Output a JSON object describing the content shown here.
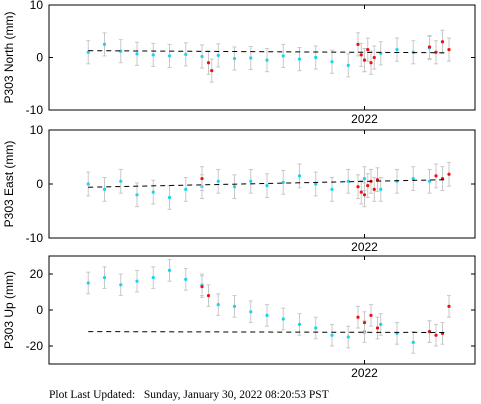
{
  "footer": {
    "label": "Plot Last Updated:",
    "timestamp": "Sunday, January 30, 2022 08:20:53 PST"
  },
  "colors": {
    "cyan_points": "#19d4ee",
    "red_points": "#ee1111",
    "error_bars": "#c8c8c8",
    "trend_line": "#000000",
    "axes": "#000000",
    "background": "#ffffff"
  },
  "chart_data": [
    {
      "type": "scatter",
      "title": "",
      "xlabel": "",
      "ylabel": "P303 North (mm)",
      "ylim": [
        -10,
        10
      ],
      "yticks": [
        -10,
        0,
        10
      ],
      "x_range_years": [
        2021.1,
        2022.3
      ],
      "xticks": [
        2022.0
      ],
      "xtick_labels": [
        "2022"
      ],
      "show_xtick_labels": true,
      "grid": false,
      "legend": "none",
      "series": [
        {
          "points": [
            {
              "x": 2021.15,
              "y": 1.0
            },
            {
              "x": 2021.2,
              "y": 2.5
            },
            {
              "x": 2021.25,
              "y": 1.2
            },
            {
              "x": 2021.3,
              "y": 0.7
            },
            {
              "x": 2021.35,
              "y": 0.5
            },
            {
              "x": 2021.4,
              "y": 0.3
            },
            {
              "x": 2021.45,
              "y": 0.6
            },
            {
              "x": 2021.5,
              "y": 0.2
            },
            {
              "x": 2021.55,
              "y": 0.4
            },
            {
              "x": 2021.6,
              "y": -0.2
            },
            {
              "x": 2021.65,
              "y": -0.1
            },
            {
              "x": 2021.7,
              "y": -0.5
            },
            {
              "x": 2021.75,
              "y": 0.3
            },
            {
              "x": 2021.8,
              "y": -0.3
            },
            {
              "x": 2021.85,
              "y": 0.0
            },
            {
              "x": 2021.9,
              "y": -0.8
            },
            {
              "x": 2021.95,
              "y": -1.5
            },
            {
              "x": 2022.0,
              "y": -0.5
            },
            {
              "x": 2022.05,
              "y": 0.8
            },
            {
              "x": 2022.1,
              "y": 1.5
            },
            {
              "x": 2022.15,
              "y": 1.0
            },
            {
              "x": 2022.2,
              "y": 1.8
            }
          ]
        },
        {
          "points": [
            {
              "x": 2021.52,
              "y": -1.0
            },
            {
              "x": 2021.53,
              "y": -2.5
            },
            {
              "x": 2021.98,
              "y": 2.5
            },
            {
              "x": 2021.99,
              "y": 0.5
            },
            {
              "x": 2022.0,
              "y": -0.5
            },
            {
              "x": 2022.01,
              "y": 1.5
            },
            {
              "x": 2022.02,
              "y": -1.0
            },
            {
              "x": 2022.03,
              "y": 0.0
            },
            {
              "x": 2022.2,
              "y": 2.0
            },
            {
              "x": 2022.22,
              "y": 1.0
            },
            {
              "x": 2022.24,
              "y": 3.0
            },
            {
              "x": 2022.26,
              "y": 1.5
            }
          ]
        }
      ],
      "trend_line": {
        "x": [
          2021.15,
          2022.25
        ],
        "y": [
          1.3,
          0.9
        ]
      }
    },
    {
      "type": "scatter",
      "title": "",
      "xlabel": "",
      "ylabel": "P303 East (mm)",
      "ylim": [
        -10,
        10
      ],
      "yticks": [
        -10,
        0,
        10
      ],
      "x_range_years": [
        2021.1,
        2022.3
      ],
      "xticks": [
        2022.0
      ],
      "xtick_labels": [
        "2022"
      ],
      "show_xtick_labels": true,
      "grid": false,
      "legend": "none",
      "series": [
        {
          "points": [
            {
              "x": 2021.15,
              "y": 0.0
            },
            {
              "x": 2021.2,
              "y": -1.0
            },
            {
              "x": 2021.25,
              "y": 0.5
            },
            {
              "x": 2021.3,
              "y": -2.0
            },
            {
              "x": 2021.35,
              "y": -1.5
            },
            {
              "x": 2021.4,
              "y": -2.5
            },
            {
              "x": 2021.45,
              "y": -1.0
            },
            {
              "x": 2021.5,
              "y": -0.5
            },
            {
              "x": 2021.55,
              "y": 0.5
            },
            {
              "x": 2021.6,
              "y": -0.5
            },
            {
              "x": 2021.65,
              "y": 0.5
            },
            {
              "x": 2021.7,
              "y": -0.3
            },
            {
              "x": 2021.75,
              "y": 0.3
            },
            {
              "x": 2021.8,
              "y": 1.5
            },
            {
              "x": 2021.85,
              "y": 0.0
            },
            {
              "x": 2021.9,
              "y": -1.0
            },
            {
              "x": 2021.95,
              "y": 0.5
            },
            {
              "x": 2022.0,
              "y": 1.0
            },
            {
              "x": 2022.05,
              "y": -1.0
            },
            {
              "x": 2022.1,
              "y": 0.5
            },
            {
              "x": 2022.15,
              "y": 1.0
            },
            {
              "x": 2022.2,
              "y": 0.5
            }
          ]
        },
        {
          "points": [
            {
              "x": 2021.5,
              "y": 1.0
            },
            {
              "x": 2021.98,
              "y": -0.5
            },
            {
              "x": 2021.99,
              "y": -1.5
            },
            {
              "x": 2022.0,
              "y": -2.0
            },
            {
              "x": 2022.01,
              "y": -0.3
            },
            {
              "x": 2022.02,
              "y": 0.5
            },
            {
              "x": 2022.03,
              "y": -1.0
            },
            {
              "x": 2022.04,
              "y": 0.8
            },
            {
              "x": 2022.22,
              "y": 1.5
            },
            {
              "x": 2022.24,
              "y": 1.0
            },
            {
              "x": 2022.26,
              "y": 1.8
            }
          ]
        }
      ],
      "trend_line": {
        "x": [
          2021.15,
          2022.25
        ],
        "y": [
          -0.6,
          0.8
        ]
      }
    },
    {
      "type": "scatter",
      "title": "",
      "xlabel": "",
      "ylabel": "P303 Up (mm)",
      "ylim": [
        -30,
        30
      ],
      "yticks": [
        -20,
        0,
        20
      ],
      "x_range_years": [
        2021.1,
        2022.3
      ],
      "xticks": [
        2022.0
      ],
      "xtick_labels": [
        "2022"
      ],
      "show_xtick_labels": true,
      "grid": false,
      "legend": "none",
      "series": [
        {
          "points": [
            {
              "x": 2021.15,
              "y": 15.0
            },
            {
              "x": 2021.2,
              "y": 18.0
            },
            {
              "x": 2021.25,
              "y": 14.0
            },
            {
              "x": 2021.3,
              "y": 16.0
            },
            {
              "x": 2021.35,
              "y": 18.0
            },
            {
              "x": 2021.4,
              "y": 22.0
            },
            {
              "x": 2021.45,
              "y": 17.0
            },
            {
              "x": 2021.5,
              "y": 14.0
            },
            {
              "x": 2021.55,
              "y": 3.0
            },
            {
              "x": 2021.6,
              "y": 2.0
            },
            {
              "x": 2021.65,
              "y": -1.0
            },
            {
              "x": 2021.7,
              "y": -3.0
            },
            {
              "x": 2021.75,
              "y": -5.0
            },
            {
              "x": 2021.8,
              "y": -8.0
            },
            {
              "x": 2021.85,
              "y": -10.0
            },
            {
              "x": 2021.9,
              "y": -14.0
            },
            {
              "x": 2021.95,
              "y": -15.0
            },
            {
              "x": 2022.0,
              "y": -12.0
            },
            {
              "x": 2022.05,
              "y": -8.0
            },
            {
              "x": 2022.1,
              "y": -13.0
            },
            {
              "x": 2022.15,
              "y": -18.0
            },
            {
              "x": 2022.2,
              "y": -12.0
            }
          ]
        },
        {
          "points": [
            {
              "x": 2021.5,
              "y": 13.0
            },
            {
              "x": 2021.52,
              "y": 8.0
            },
            {
              "x": 2021.98,
              "y": -4.0
            },
            {
              "x": 2022.0,
              "y": -7.0
            },
            {
              "x": 2022.02,
              "y": -3.0
            },
            {
              "x": 2022.04,
              "y": -10.0
            },
            {
              "x": 2022.2,
              "y": -12.0
            },
            {
              "x": 2022.22,
              "y": -14.0
            },
            {
              "x": 2022.24,
              "y": -13.0
            },
            {
              "x": 2022.26,
              "y": 2.0
            }
          ]
        }
      ],
      "trend_line": {
        "x": [
          2021.15,
          2022.25
        ],
        "y": [
          -12.0,
          -12.5
        ]
      }
    }
  ]
}
